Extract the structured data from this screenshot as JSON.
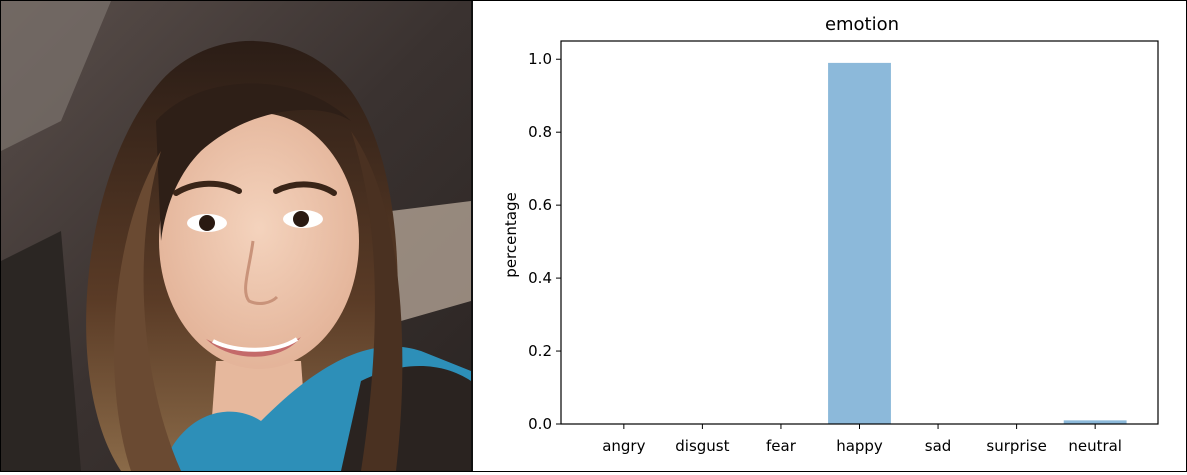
{
  "photo": {
    "subject": "selfie-photo"
  },
  "chart_data": {
    "type": "bar",
    "title": "emotion",
    "xlabel": "",
    "ylabel": "percentage",
    "categories": [
      "angry",
      "disgust",
      "fear",
      "happy",
      "sad",
      "surprise",
      "neutral"
    ],
    "values": [
      0.0,
      0.0,
      0.0,
      0.99,
      0.0,
      0.0,
      0.01
    ],
    "ylim": [
      0,
      1.05
    ],
    "yticks": [
      0.0,
      0.2,
      0.4,
      0.6,
      0.8,
      1.0
    ],
    "ytick_labels": [
      "0.0",
      "0.2",
      "0.4",
      "0.6",
      "0.8",
      "1.0"
    ],
    "bar_color": "#8cb9da",
    "grid": false
  }
}
